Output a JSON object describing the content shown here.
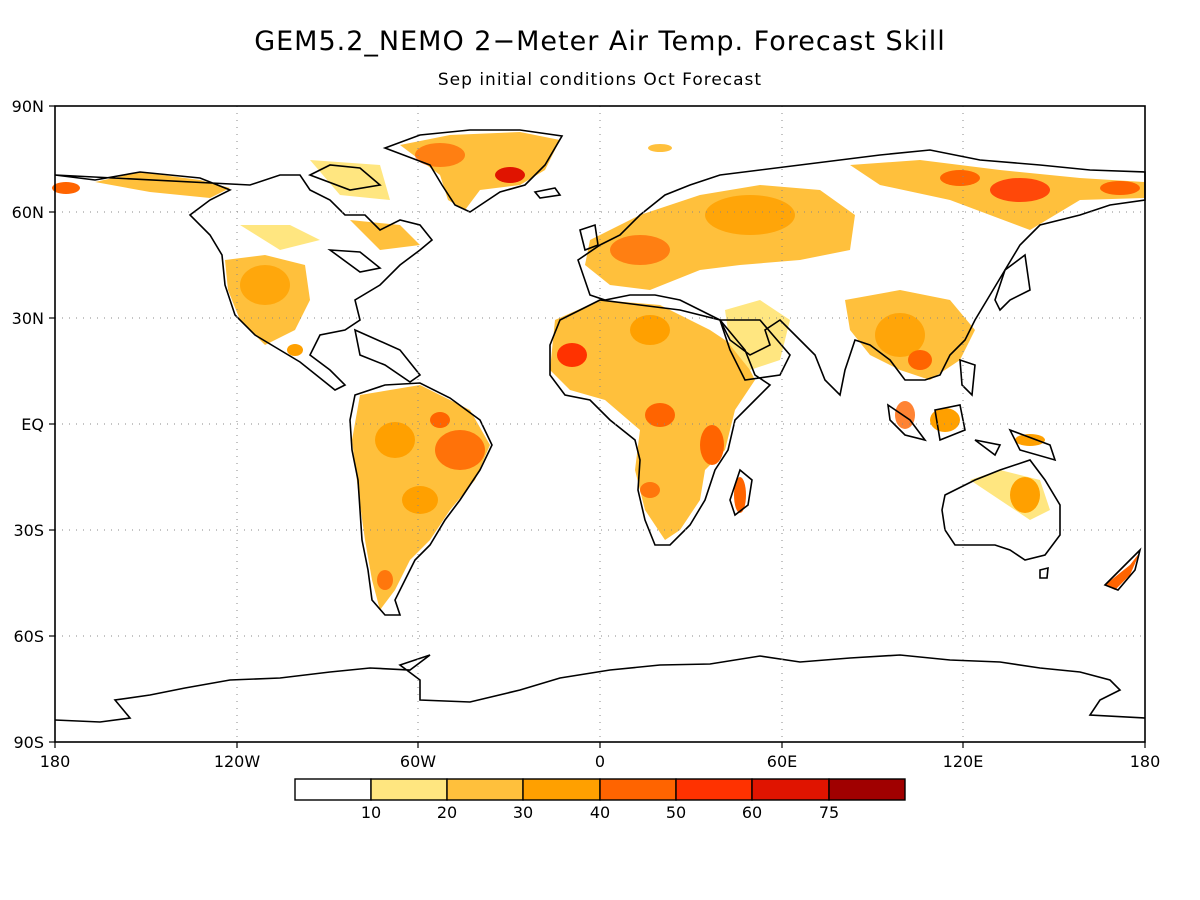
{
  "title": "GEM5.2_NEMO 2−Meter Air Temp. Forecast Skill",
  "subtitle": "Sep initial conditions  Oct Forecast",
  "map": {
    "lat_labels": [
      "90N",
      "60N",
      "30N",
      "EQ",
      "30S",
      "60S",
      "90S"
    ],
    "lat_values": [
      90,
      60,
      30,
      0,
      -30,
      -60,
      -90
    ],
    "lon_labels": [
      "180",
      "120W",
      "60W",
      "0",
      "60E",
      "120E",
      "180"
    ],
    "lon_values": [
      -180,
      -120,
      -60,
      0,
      60,
      120,
      180
    ],
    "grid": "dotted"
  },
  "legend": {
    "labels": [
      "10",
      "20",
      "30",
      "40",
      "50",
      "60",
      "75"
    ],
    "colors": [
      "#ffffff",
      "#ffe680",
      "#ffc03c",
      "#ffa000",
      "#ff6400",
      "#ff3200",
      "#e01400",
      "#a00000"
    ]
  }
}
